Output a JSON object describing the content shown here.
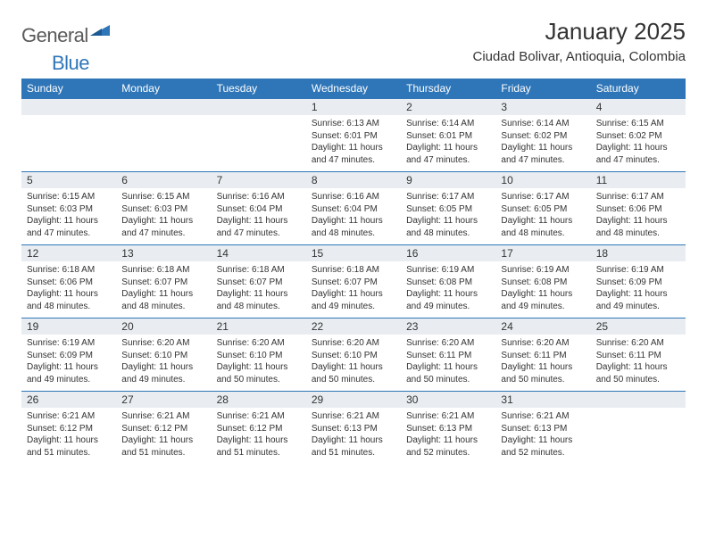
{
  "brand": {
    "text_general": "General",
    "text_blue": "Blue",
    "icon_color": "#2f76b8"
  },
  "title": "January 2025",
  "location": "Ciudad Bolivar, Antioquia, Colombia",
  "colors": {
    "header_bg": "#2f76b8",
    "header_text": "#ffffff",
    "daynum_bg": "#e9edf1",
    "text": "#333333",
    "page_bg": "#ffffff"
  },
  "day_headers": [
    "Sunday",
    "Monday",
    "Tuesday",
    "Wednesday",
    "Thursday",
    "Friday",
    "Saturday"
  ],
  "weeks": [
    [
      null,
      null,
      null,
      {
        "n": "1",
        "sr": "6:13 AM",
        "ss": "6:01 PM",
        "dl": "11 hours and 47 minutes."
      },
      {
        "n": "2",
        "sr": "6:14 AM",
        "ss": "6:01 PM",
        "dl": "11 hours and 47 minutes."
      },
      {
        "n": "3",
        "sr": "6:14 AM",
        "ss": "6:02 PM",
        "dl": "11 hours and 47 minutes."
      },
      {
        "n": "4",
        "sr": "6:15 AM",
        "ss": "6:02 PM",
        "dl": "11 hours and 47 minutes."
      }
    ],
    [
      {
        "n": "5",
        "sr": "6:15 AM",
        "ss": "6:03 PM",
        "dl": "11 hours and 47 minutes."
      },
      {
        "n": "6",
        "sr": "6:15 AM",
        "ss": "6:03 PM",
        "dl": "11 hours and 47 minutes."
      },
      {
        "n": "7",
        "sr": "6:16 AM",
        "ss": "6:04 PM",
        "dl": "11 hours and 47 minutes."
      },
      {
        "n": "8",
        "sr": "6:16 AM",
        "ss": "6:04 PM",
        "dl": "11 hours and 48 minutes."
      },
      {
        "n": "9",
        "sr": "6:17 AM",
        "ss": "6:05 PM",
        "dl": "11 hours and 48 minutes."
      },
      {
        "n": "10",
        "sr": "6:17 AM",
        "ss": "6:05 PM",
        "dl": "11 hours and 48 minutes."
      },
      {
        "n": "11",
        "sr": "6:17 AM",
        "ss": "6:06 PM",
        "dl": "11 hours and 48 minutes."
      }
    ],
    [
      {
        "n": "12",
        "sr": "6:18 AM",
        "ss": "6:06 PM",
        "dl": "11 hours and 48 minutes."
      },
      {
        "n": "13",
        "sr": "6:18 AM",
        "ss": "6:07 PM",
        "dl": "11 hours and 48 minutes."
      },
      {
        "n": "14",
        "sr": "6:18 AM",
        "ss": "6:07 PM",
        "dl": "11 hours and 48 minutes."
      },
      {
        "n": "15",
        "sr": "6:18 AM",
        "ss": "6:07 PM",
        "dl": "11 hours and 49 minutes."
      },
      {
        "n": "16",
        "sr": "6:19 AM",
        "ss": "6:08 PM",
        "dl": "11 hours and 49 minutes."
      },
      {
        "n": "17",
        "sr": "6:19 AM",
        "ss": "6:08 PM",
        "dl": "11 hours and 49 minutes."
      },
      {
        "n": "18",
        "sr": "6:19 AM",
        "ss": "6:09 PM",
        "dl": "11 hours and 49 minutes."
      }
    ],
    [
      {
        "n": "19",
        "sr": "6:19 AM",
        "ss": "6:09 PM",
        "dl": "11 hours and 49 minutes."
      },
      {
        "n": "20",
        "sr": "6:20 AM",
        "ss": "6:10 PM",
        "dl": "11 hours and 49 minutes."
      },
      {
        "n": "21",
        "sr": "6:20 AM",
        "ss": "6:10 PM",
        "dl": "11 hours and 50 minutes."
      },
      {
        "n": "22",
        "sr": "6:20 AM",
        "ss": "6:10 PM",
        "dl": "11 hours and 50 minutes."
      },
      {
        "n": "23",
        "sr": "6:20 AM",
        "ss": "6:11 PM",
        "dl": "11 hours and 50 minutes."
      },
      {
        "n": "24",
        "sr": "6:20 AM",
        "ss": "6:11 PM",
        "dl": "11 hours and 50 minutes."
      },
      {
        "n": "25",
        "sr": "6:20 AM",
        "ss": "6:11 PM",
        "dl": "11 hours and 50 minutes."
      }
    ],
    [
      {
        "n": "26",
        "sr": "6:21 AM",
        "ss": "6:12 PM",
        "dl": "11 hours and 51 minutes."
      },
      {
        "n": "27",
        "sr": "6:21 AM",
        "ss": "6:12 PM",
        "dl": "11 hours and 51 minutes."
      },
      {
        "n": "28",
        "sr": "6:21 AM",
        "ss": "6:12 PM",
        "dl": "11 hours and 51 minutes."
      },
      {
        "n": "29",
        "sr": "6:21 AM",
        "ss": "6:13 PM",
        "dl": "11 hours and 51 minutes."
      },
      {
        "n": "30",
        "sr": "6:21 AM",
        "ss": "6:13 PM",
        "dl": "11 hours and 52 minutes."
      },
      {
        "n": "31",
        "sr": "6:21 AM",
        "ss": "6:13 PM",
        "dl": "11 hours and 52 minutes."
      },
      null
    ]
  ],
  "labels": {
    "sunrise": "Sunrise:",
    "sunset": "Sunset:",
    "daylight": "Daylight:"
  }
}
